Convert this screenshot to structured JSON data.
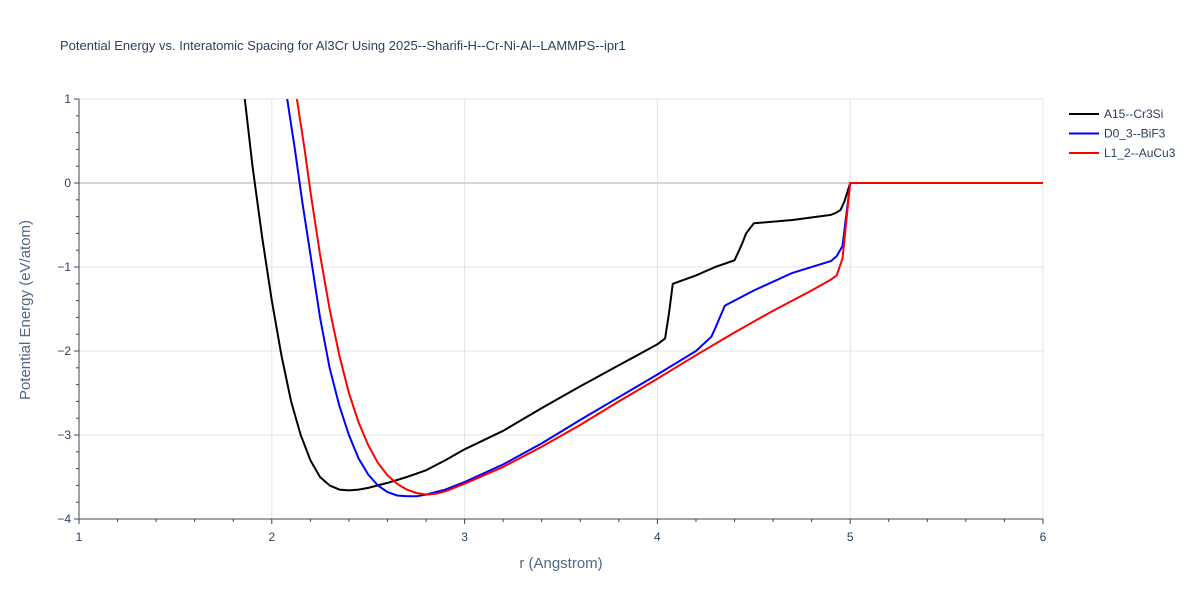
{
  "chart_data": {
    "type": "line",
    "title": "Potential Energy vs. Interatomic Spacing for Al3Cr Using 2025--Sharifi-H--Cr-Ni-Al--LAMMPS--ipr1",
    "xlabel": "r (Angstrom)",
    "ylabel": "Potential Energy (eV/atom)",
    "xlim": [
      1,
      6
    ],
    "ylim": [
      -4,
      1
    ],
    "x_ticks": [
      "1",
      "2",
      "3",
      "4",
      "5",
      "6"
    ],
    "y_ticks": [
      "1",
      "0",
      "−1",
      "−2",
      "−3",
      "−4"
    ],
    "x_tick_values": [
      1,
      2,
      3,
      4,
      5,
      6
    ],
    "y_tick_values": [
      1,
      0,
      -1,
      -2,
      -3,
      -4
    ],
    "grid": true,
    "legend_position": "top-right",
    "series": [
      {
        "name": "A15--Cr3Si",
        "color": "#000000",
        "x": [
          1.86,
          1.9,
          1.95,
          2.0,
          2.05,
          2.1,
          2.15,
          2.2,
          2.25,
          2.3,
          2.35,
          2.4,
          2.45,
          2.5,
          2.55,
          2.6,
          2.7,
          2.8,
          2.9,
          3.0,
          3.2,
          3.4,
          3.6,
          3.8,
          4.0,
          4.04,
          4.06,
          4.08,
          4.2,
          4.3,
          4.4,
          4.42,
          4.44,
          4.46,
          4.5,
          4.7,
          4.9,
          4.93,
          4.95,
          4.97,
          5.0,
          5.5,
          6.0
        ],
        "y": [
          1.0,
          0.2,
          -0.65,
          -1.4,
          -2.05,
          -2.6,
          -3.0,
          -3.3,
          -3.5,
          -3.6,
          -3.65,
          -3.66,
          -3.65,
          -3.63,
          -3.6,
          -3.57,
          -3.5,
          -3.42,
          -3.3,
          -3.17,
          -2.95,
          -2.68,
          -2.42,
          -2.17,
          -1.92,
          -1.85,
          -1.55,
          -1.2,
          -1.1,
          -1.0,
          -0.92,
          -0.82,
          -0.72,
          -0.6,
          -0.48,
          -0.44,
          -0.38,
          -0.35,
          -0.32,
          -0.22,
          0.0,
          0.0,
          0.0
        ]
      },
      {
        "name": "D0_3--BiF3",
        "color": "#0000ff",
        "x": [
          2.08,
          2.12,
          2.16,
          2.2,
          2.25,
          2.3,
          2.35,
          2.4,
          2.45,
          2.5,
          2.55,
          2.6,
          2.65,
          2.7,
          2.75,
          2.8,
          2.9,
          3.0,
          3.2,
          3.4,
          3.6,
          3.8,
          4.0,
          4.2,
          4.28,
          4.3,
          4.32,
          4.35,
          4.5,
          4.7,
          4.9,
          4.93,
          4.96,
          5.0,
          5.5,
          6.0
        ],
        "y": [
          1.0,
          0.4,
          -0.25,
          -0.85,
          -1.6,
          -2.2,
          -2.65,
          -3.0,
          -3.28,
          -3.47,
          -3.6,
          -3.68,
          -3.72,
          -3.73,
          -3.73,
          -3.71,
          -3.65,
          -3.56,
          -3.35,
          -3.1,
          -2.82,
          -2.55,
          -2.28,
          -2.0,
          -1.83,
          -1.73,
          -1.62,
          -1.46,
          -1.28,
          -1.07,
          -0.93,
          -0.87,
          -0.75,
          0.0,
          0.0,
          0.0
        ]
      },
      {
        "name": "L1_2--AuCu3",
        "color": "#ff0000",
        "x": [
          2.13,
          2.17,
          2.2,
          2.25,
          2.3,
          2.35,
          2.4,
          2.45,
          2.5,
          2.55,
          2.6,
          2.65,
          2.7,
          2.75,
          2.8,
          2.85,
          2.9,
          3.0,
          3.2,
          3.4,
          3.6,
          3.8,
          4.0,
          4.2,
          4.4,
          4.6,
          4.8,
          4.9,
          4.93,
          4.96,
          5.0,
          5.5,
          6.0
        ],
        "y": [
          1.0,
          0.4,
          -0.1,
          -0.85,
          -1.5,
          -2.05,
          -2.5,
          -2.85,
          -3.12,
          -3.33,
          -3.48,
          -3.58,
          -3.65,
          -3.69,
          -3.71,
          -3.7,
          -3.67,
          -3.58,
          -3.38,
          -3.14,
          -2.88,
          -2.6,
          -2.33,
          -2.05,
          -1.78,
          -1.52,
          -1.28,
          -1.15,
          -1.1,
          -0.9,
          0.0,
          0.0,
          0.0
        ]
      }
    ]
  }
}
